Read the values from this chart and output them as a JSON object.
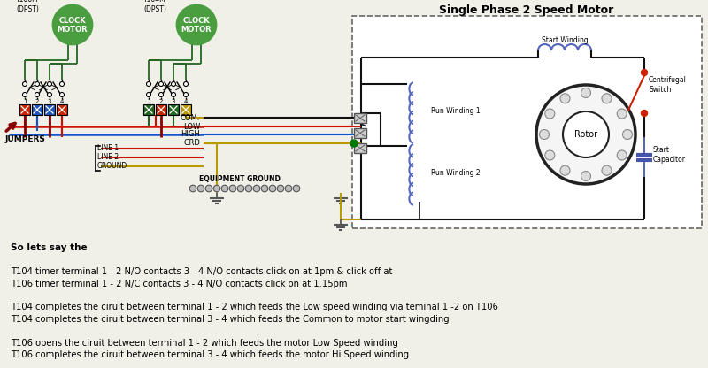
{
  "title": "Single Phase 2 Speed Motor",
  "bg_color": "#f0f0e8",
  "bottom_text": [
    "So lets say the",
    "",
    "T104 timer terminal 1 - 2 N/O contacts 3 - 4 N/O contacts click on at 1pm & click off at",
    "T106 timer terminal 1 - 2 N/C contacts 3 - 4 N/O contacts click on at 1.15pm",
    "",
    "T104 completes the ciruit between terminal 1 - 2 which feeds the Low speed winding via teminal 1 -2 on T106",
    "T104 completes the ciruit between terminal 3 - 4 which feeds the Common to motor start wingding",
    "",
    "T106 opens the ciruit between terminal 1 - 2 which feeds the motor Low Speed winding",
    "T106 completes the ciruit between terminal 3 - 4 which feeds the motor Hi Speed winding"
  ],
  "wire_red": "#cc1100",
  "wire_blue": "#1155cc",
  "wire_yellow": "#bb9900",
  "wire_black": "#111111",
  "wire_green": "#226622",
  "wire_darkred": "#880000",
  "clock_green": "#4a9e3f",
  "coil_blue": "#5566bb",
  "cap_blue": "#4455aa",
  "sw_red": "#cc2200",
  "term_red": "#cc2200",
  "term_blue": "#2255bb",
  "term_green": "#226622",
  "term_yellow": "#bb9900",
  "ground_green": "#007700"
}
